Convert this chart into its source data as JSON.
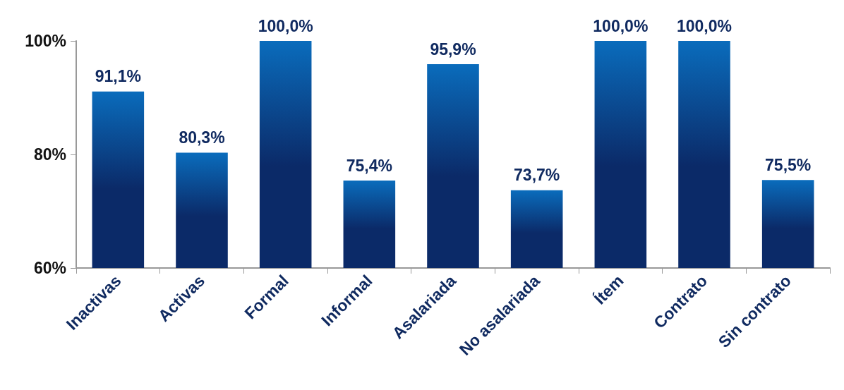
{
  "chart_data": {
    "type": "bar",
    "categories": [
      "Inactivas",
      "Activas",
      "Formal",
      "Informal",
      "Asalariada",
      "No asalariada",
      "Ítem",
      "Contrato",
      "Sin contrato"
    ],
    "values": [
      91.1,
      80.3,
      100.0,
      75.4,
      95.9,
      73.7,
      100.0,
      100.0,
      75.5
    ],
    "value_labels": [
      "91,1%",
      "80,3%",
      "100,0%",
      "75,4%",
      "95,9%",
      "73,7%",
      "100,0%",
      "100,0%",
      "75,5%"
    ],
    "color": "#0b2a68",
    "ylim": [
      60,
      100
    ],
    "yticks": [
      {
        "value": 60,
        "label": "60%"
      },
      {
        "value": 80,
        "label": "80%"
      },
      {
        "value": 100,
        "label": "100%"
      }
    ],
    "grid": false
  }
}
